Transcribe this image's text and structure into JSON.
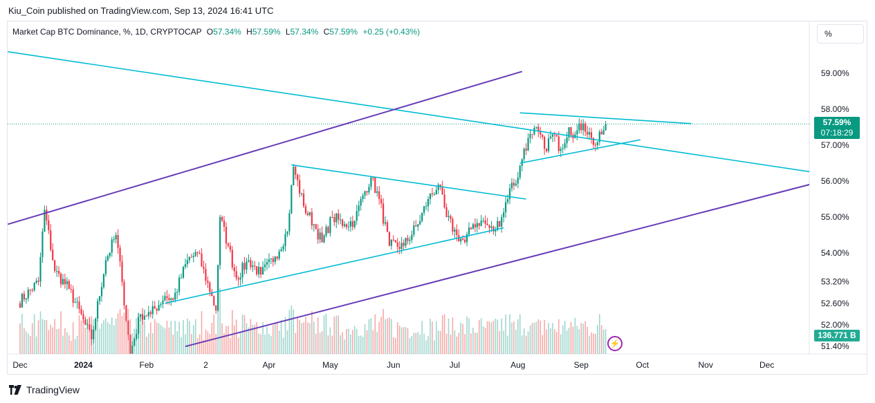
{
  "publisher_line": "Kiu_Coin published on TradingView.com, Sep 13, 2024 16:41 UTC",
  "legend": {
    "title": "Market Cap BTC Dominance, %, 1D, CRYPTOCAP",
    "o_label": "O",
    "o_value": "57.34%",
    "h_label": "H",
    "h_value": "57.59%",
    "l_label": "L",
    "l_value": "57.34%",
    "c_label": "C",
    "c_value": "57.59%",
    "change": "+0.25 (+0.43%)"
  },
  "scale_mode": "%",
  "last_price_label": "57.59%",
  "countdown_label": "07:18:29",
  "volume_label": "136.771 B",
  "brand": "TradingView",
  "colors": {
    "up": "#089981",
    "down": "#f23645",
    "trendline": "#00bcd4",
    "channel": "#673ab7",
    "vol_up": "#9fd6cd",
    "vol_down": "#f7a9a7"
  },
  "chart_data": {
    "type": "candlestick",
    "title": "Market Cap BTC Dominance, %, 1D, CRYPTOCAP",
    "ylim": [
      51.4,
      59.8
    ],
    "y_ticks": [
      "59.00%",
      "58.00%",
      "57.00%",
      "56.00%",
      "55.00%",
      "54.00%",
      "53.20%",
      "52.60%",
      "52.00%",
      "51.40%"
    ],
    "x_ticks": [
      "Dec",
      "2024",
      "Feb",
      "2",
      "Apr",
      "May",
      "Jun",
      "Jul",
      "Aug",
      "Sep",
      "Oct",
      "Nov",
      "Dec"
    ],
    "last_close": 57.59,
    "anchors": [
      [
        "2023-11-30",
        52.6
      ],
      [
        "2023-12-10",
        53.2
      ],
      [
        "2023-12-13",
        55.2
      ],
      [
        "2023-12-18",
        53.5
      ],
      [
        "2023-12-25",
        53.0
      ],
      [
        "2024-01-02",
        52.0
      ],
      [
        "2024-01-05",
        51.6
      ],
      [
        "2024-01-12",
        53.8
      ],
      [
        "2024-01-17",
        54.5
      ],
      [
        "2024-01-20",
        53.2
      ],
      [
        "2024-01-24",
        51.2
      ],
      [
        "2024-01-29",
        52.3
      ],
      [
        "2024-02-03",
        52.3
      ],
      [
        "2024-02-10",
        52.8
      ],
      [
        "2024-02-14",
        52.7
      ],
      [
        "2024-02-21",
        53.8
      ],
      [
        "2024-02-26",
        54.0
      ],
      [
        "2024-03-04",
        52.8
      ],
      [
        "2024-03-06",
        52.4
      ],
      [
        "2024-03-08",
        55.0
      ],
      [
        "2024-03-12",
        54.2
      ],
      [
        "2024-03-16",
        53.3
      ],
      [
        "2024-03-22",
        53.8
      ],
      [
        "2024-03-28",
        53.4
      ],
      [
        "2024-04-04",
        53.9
      ],
      [
        "2024-04-10",
        54.6
      ],
      [
        "2024-04-13",
        56.4
      ],
      [
        "2024-04-18",
        55.3
      ],
      [
        "2024-04-23",
        54.8
      ],
      [
        "2024-04-27",
        54.3
      ],
      [
        "2024-05-02",
        55.0
      ],
      [
        "2024-05-08",
        54.8
      ],
      [
        "2024-05-13",
        54.9
      ],
      [
        "2024-05-17",
        55.6
      ],
      [
        "2024-05-21",
        56.1
      ],
      [
        "2024-05-25",
        55.5
      ],
      [
        "2024-05-30",
        54.2
      ],
      [
        "2024-06-06",
        54.2
      ],
      [
        "2024-06-13",
        54.8
      ],
      [
        "2024-06-18",
        55.5
      ],
      [
        "2024-06-23",
        55.9
      ],
      [
        "2024-06-27",
        55.0
      ],
      [
        "2024-07-02",
        54.5
      ],
      [
        "2024-07-06",
        54.3
      ],
      [
        "2024-07-10",
        54.8
      ],
      [
        "2024-07-14",
        54.9
      ],
      [
        "2024-07-20",
        54.6
      ],
      [
        "2024-07-24",
        55.0
      ],
      [
        "2024-07-28",
        55.8
      ],
      [
        "2024-08-01",
        56.1
      ],
      [
        "2024-08-04",
        56.9
      ],
      [
        "2024-08-08",
        57.3
      ],
      [
        "2024-08-11",
        57.4
      ],
      [
        "2024-08-14",
        56.9
      ],
      [
        "2024-08-18",
        57.3
      ],
      [
        "2024-08-22",
        56.9
      ],
      [
        "2024-08-26",
        57.5
      ],
      [
        "2024-08-29",
        57.3
      ],
      [
        "2024-09-02",
        57.6
      ],
      [
        "2024-09-06",
        57.2
      ],
      [
        "2024-09-08",
        57.0
      ],
      [
        "2024-09-11",
        57.3
      ],
      [
        "2024-09-13",
        57.59
      ]
    ],
    "trendlines": [
      {
        "name": "cyan-descending-long",
        "from": [
          "2023-11-25",
          59.6
        ],
        "to": [
          "2025-01-10",
          56.1
        ]
      },
      {
        "name": "cyan-ascending-support",
        "from": [
          "2024-02-10",
          52.6
        ],
        "to": [
          "2024-07-25",
          54.7
        ]
      },
      {
        "name": "cyan-pennant-upper",
        "from": [
          "2024-04-12",
          56.45
        ],
        "to": [
          "2024-08-05",
          55.5
        ]
      },
      {
        "name": "cyan-aug-support",
        "from": [
          "2024-08-02",
          56.5
        ],
        "to": [
          "2024-09-30",
          57.15
        ]
      },
      {
        "name": "cyan-aug-resistance",
        "from": [
          "2024-08-02",
          57.9
        ],
        "to": [
          "2024-10-25",
          57.6
        ]
      },
      {
        "name": "purple-channel-upper",
        "from": [
          "2023-11-25",
          54.8
        ],
        "to": [
          "2024-08-03",
          59.05
        ]
      },
      {
        "name": "purple-channel-lower",
        "from": [
          "2024-02-20",
          51.4
        ],
        "to": [
          "2024-12-25",
          55.95
        ]
      }
    ]
  }
}
